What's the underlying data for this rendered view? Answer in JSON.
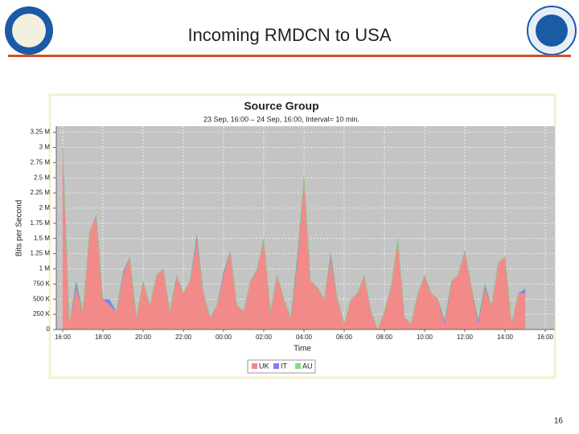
{
  "slide": {
    "title": "Incoming RMDCN to USA",
    "page_number": "16"
  },
  "chart_data": {
    "type": "area",
    "stacked": true,
    "title": "Source Group",
    "subtitle": "23 Sep, 16:00 – 24 Sep, 16:00, Interval= 10 min.",
    "x_label": "Time",
    "y_label": "Bits per Second",
    "categories": [
      "16:00",
      null,
      null,
      null,
      null,
      null,
      "18:00",
      null,
      null,
      null,
      null,
      null,
      "20:00",
      null,
      null,
      null,
      null,
      null,
      "22:00",
      null,
      null,
      null,
      null,
      null,
      "00:00",
      null,
      null,
      null,
      null,
      null,
      "02:00",
      null,
      null,
      null,
      null,
      null,
      "04:00",
      null,
      null,
      null,
      null,
      null,
      "06:00",
      null,
      null,
      null,
      null,
      null,
      "08:00",
      null,
      null,
      null,
      null,
      null,
      "10:00",
      null,
      null,
      null,
      null,
      null,
      "12:00",
      null,
      null,
      null,
      null,
      null,
      "14:00",
      null,
      null,
      null,
      null,
      null,
      "16:00"
    ],
    "series": [
      {
        "name": "UK",
        "color": "#f28a8a",
        "values": [
          3000000,
          100000,
          700000,
          300000,
          1600000,
          1900000,
          500000,
          400000,
          300000,
          900000,
          1200000,
          200000,
          800000,
          400000,
          900000,
          1000000,
          300000,
          900000,
          600000,
          800000,
          1500000,
          600000,
          200000,
          400000,
          900000,
          1300000,
          400000,
          300000,
          800000,
          1000000,
          1500000,
          300000,
          900000,
          500000,
          200000,
          1100000,
          2500000,
          800000,
          700000,
          500000,
          1200000,
          500000,
          100000,
          500000,
          600000,
          900000,
          300000,
          0,
          300000,
          700000,
          1500000,
          200000,
          100000,
          600000,
          900000,
          600000,
          500000,
          100000,
          800000,
          900000,
          1300000,
          700000,
          100000,
          700000,
          400000,
          1100000,
          1200000,
          100000,
          600000,
          600000,
          null,
          null,
          null
        ]
      },
      {
        "name": "IT",
        "color": "#8080ee",
        "values": [
          0,
          0,
          100000,
          0,
          0,
          0,
          0,
          100000,
          0,
          50000,
          0,
          0,
          0,
          0,
          0,
          0,
          0,
          0,
          0,
          0,
          80000,
          0,
          0,
          0,
          50000,
          0,
          0,
          0,
          0,
          0,
          0,
          0,
          0,
          0,
          0,
          100000,
          0,
          0,
          0,
          0,
          60000,
          0,
          0,
          0,
          0,
          0,
          0,
          0,
          0,
          0,
          0,
          0,
          0,
          0,
          0,
          0,
          0,
          50000,
          0,
          0,
          0,
          0,
          60000,
          50000,
          0,
          0,
          0,
          0,
          0,
          70000,
          null,
          null,
          null
        ]
      },
      {
        "name": "AU",
        "color": "#80e080",
        "values": [
          0,
          0,
          0,
          0,
          0,
          0,
          0,
          0,
          0,
          0,
          0,
          0,
          0,
          0,
          0,
          0,
          0,
          0,
          0,
          0,
          0,
          0,
          0,
          0,
          0,
          0,
          0,
          0,
          0,
          0,
          0,
          0,
          0,
          0,
          0,
          0,
          0,
          0,
          0,
          0,
          0,
          0,
          0,
          0,
          0,
          0,
          0,
          0,
          0,
          0,
          0,
          0,
          0,
          0,
          0,
          0,
          0,
          0,
          0,
          0,
          0,
          0,
          0,
          0,
          0,
          0,
          0,
          0,
          0,
          0,
          null,
          null,
          null
        ]
      }
    ],
    "ylim": [
      0,
      3350000
    ],
    "yticks": [
      0,
      {
        "value": 250000,
        "label": "250 K"
      },
      {
        "value": 500000,
        "label": "500 K"
      },
      {
        "value": 750000,
        "label": "750 K"
      },
      {
        "value": 1000000,
        "label": "1 M"
      },
      {
        "value": 1250000,
        "label": "1.25 M"
      },
      {
        "value": 1500000,
        "label": "1.5 M"
      },
      {
        "value": 1750000,
        "label": "1.75 M"
      },
      {
        "value": 2000000,
        "label": "2 M"
      },
      {
        "value": 2250000,
        "label": "2.25 M"
      },
      {
        "value": 2500000,
        "label": "2.5 M"
      },
      {
        "value": 2750000,
        "label": "2.75 M"
      },
      {
        "value": 3000000,
        "label": "3 M"
      },
      {
        "value": 3250000,
        "label": "3.25 M"
      }
    ],
    "grid": true,
    "legend": "bottom"
  }
}
